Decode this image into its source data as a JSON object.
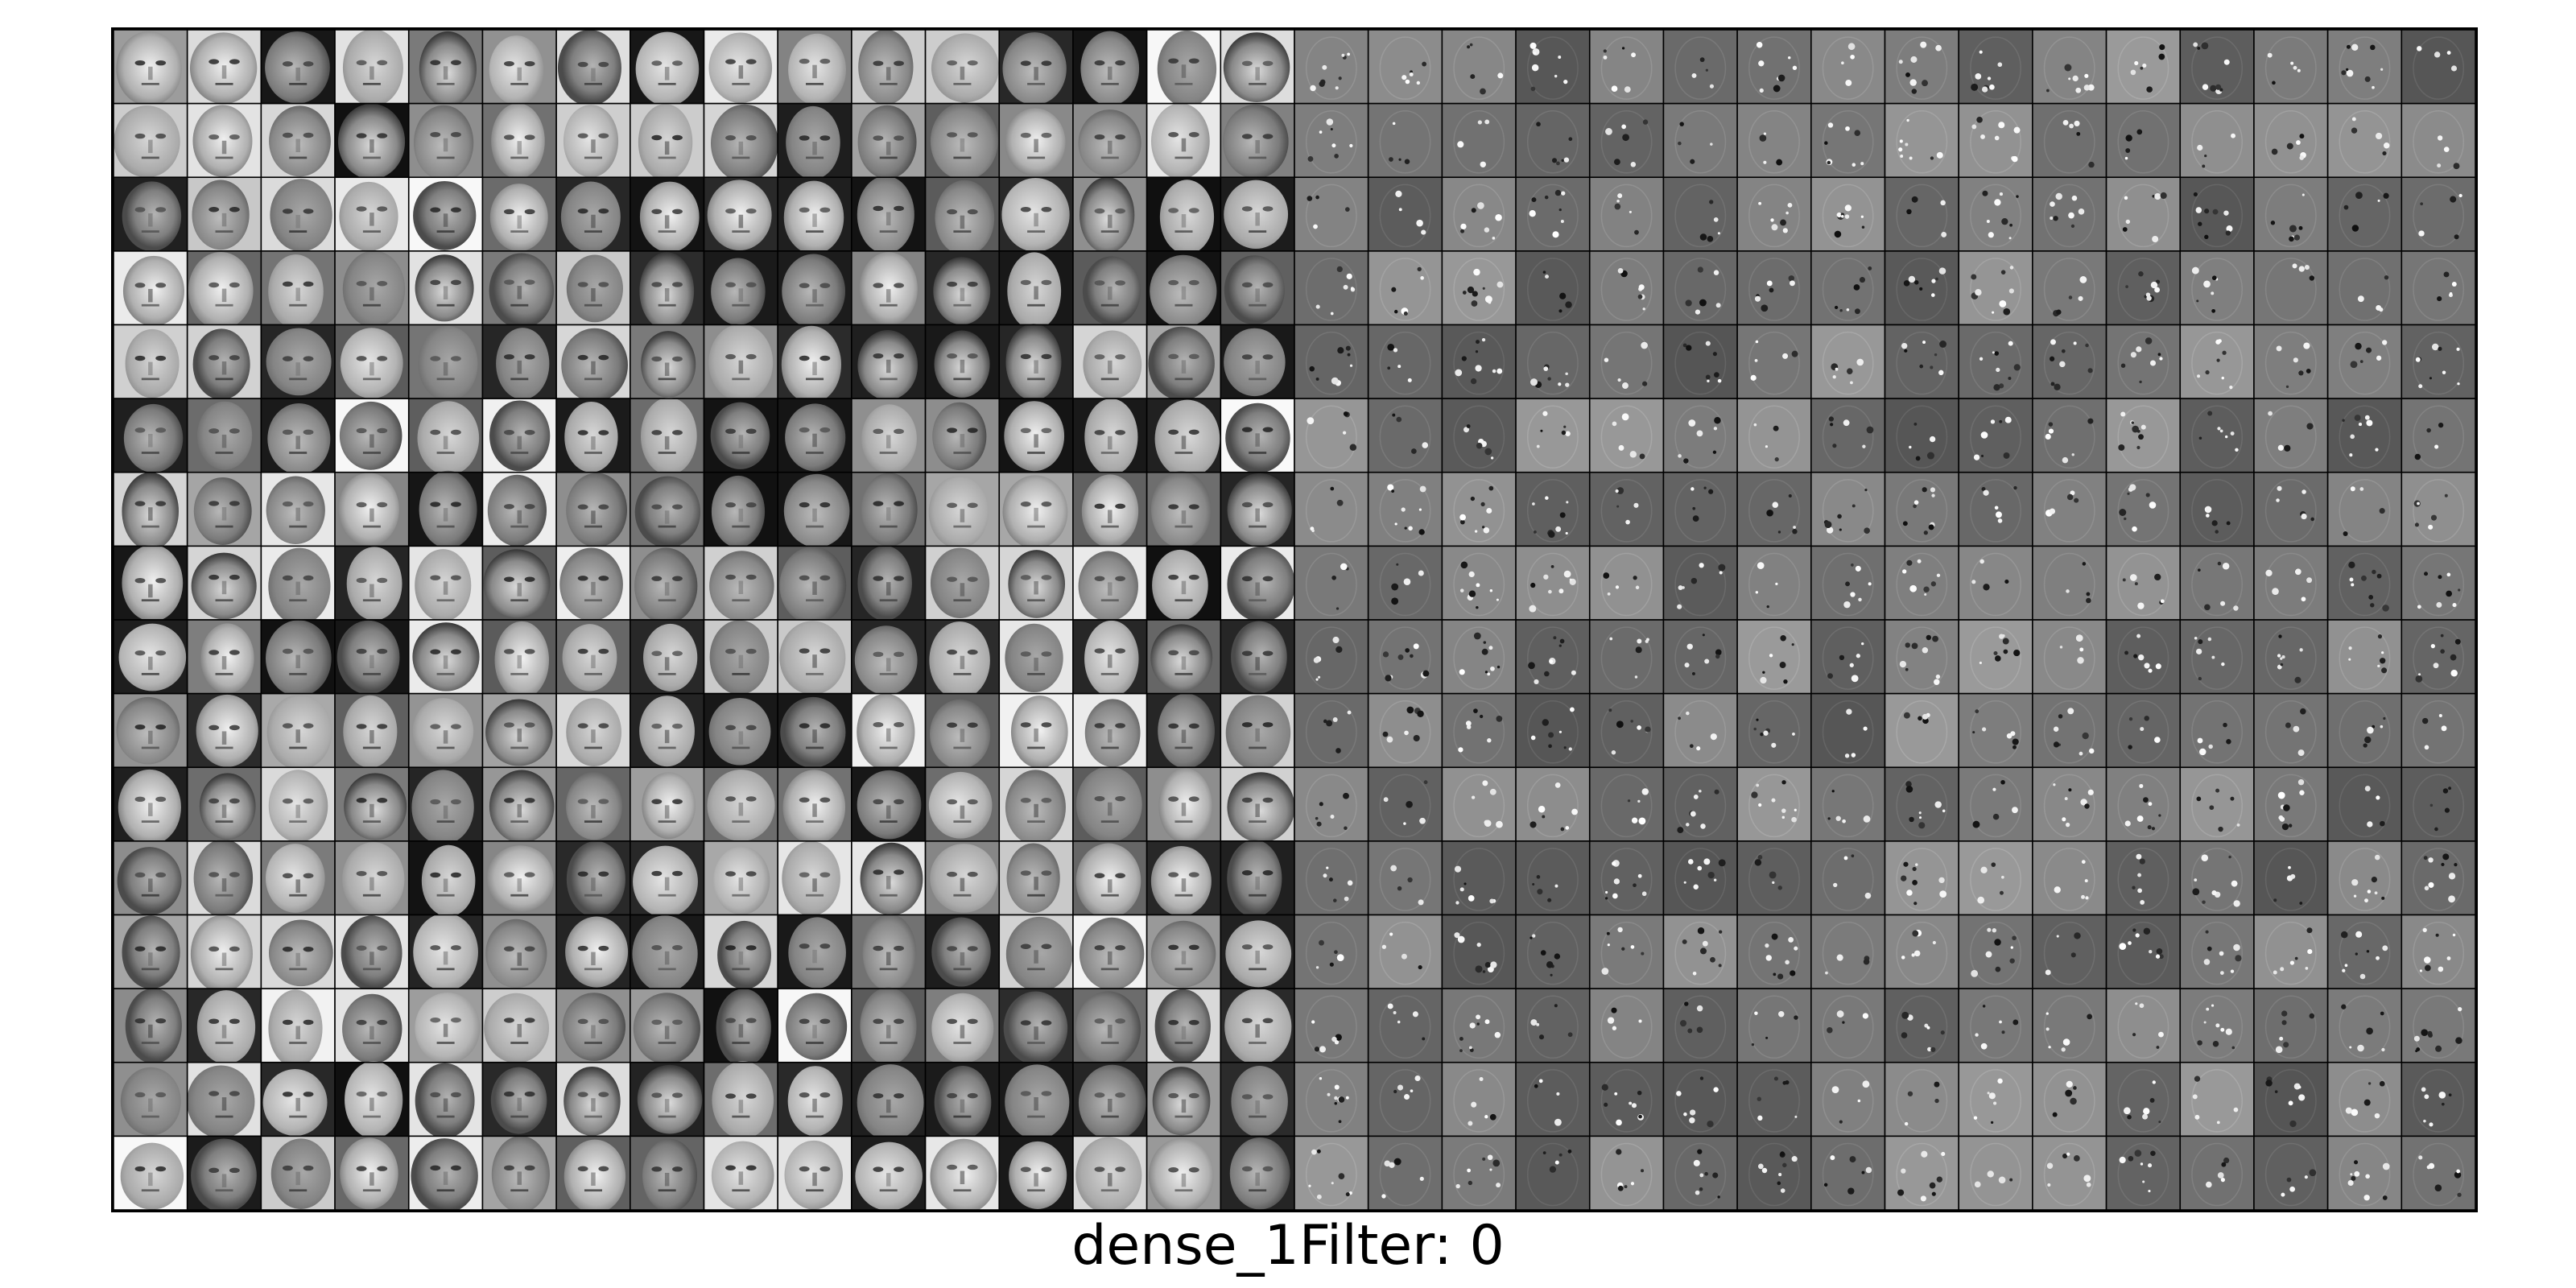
{
  "figure": {
    "caption": "dense_1Filter: 0",
    "grid": {
      "columns": 32,
      "rows": 16,
      "left_block": {
        "description_key": "face-images",
        "columns": 16
      },
      "right_block": {
        "description_key": "filter-activations",
        "columns": 16
      }
    },
    "colors": {
      "background": "#ffffff",
      "frame": "#000000",
      "tile_border": "#000000",
      "activation_base": "#7a7a7a"
    }
  }
}
